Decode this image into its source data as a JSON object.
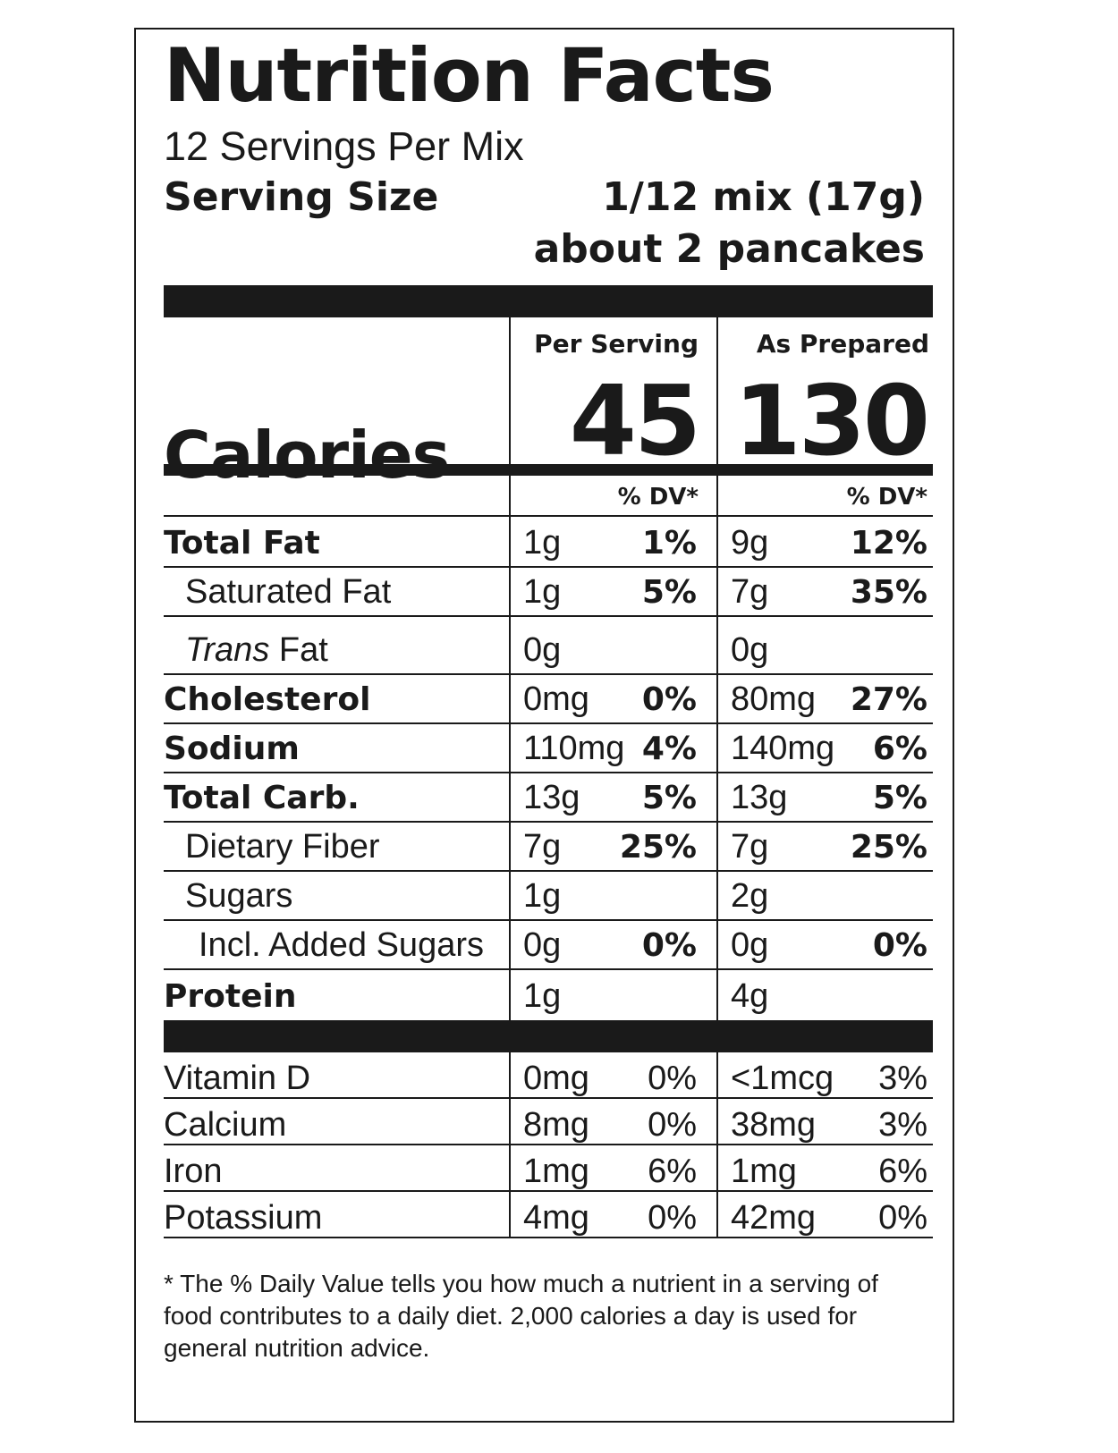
{
  "title": "Nutrition Facts",
  "servings_per_container": "12 Servings Per Mix",
  "serving_size": {
    "label": "Serving Size",
    "value_line1": "1/12 mix (17g)",
    "value_line2": "about 2 pancakes"
  },
  "columns": {
    "per_serving": "Per Serving",
    "as_prepared": "As Prepared",
    "dv_header": "% DV*"
  },
  "calories": {
    "label": "Calories",
    "per_serving": "45",
    "as_prepared": "130"
  },
  "nutrients": [
    {
      "name": "Total Fat",
      "style": "bold",
      "ps_amt": "1g",
      "ps_dv": "1%",
      "ap_amt": "9g",
      "ap_dv": "12%"
    },
    {
      "name": "Saturated Fat",
      "style": "sub",
      "ps_amt": "1g",
      "ps_dv": "5%",
      "ap_amt": "7g",
      "ap_dv": "35%"
    },
    {
      "name_italic": "Trans",
      "name_rest": " Fat",
      "style": "sub",
      "ps_amt": "0g",
      "ps_dv": "",
      "ap_amt": "0g",
      "ap_dv": ""
    },
    {
      "name": "Cholesterol",
      "style": "bold",
      "ps_amt": "0mg",
      "ps_dv": "0%",
      "ap_amt": "80mg",
      "ap_dv": "27%"
    },
    {
      "name": "Sodium",
      "style": "bold",
      "ps_amt": "110mg",
      "ps_dv": "4%",
      "ap_amt": "140mg",
      "ap_dv": "6%"
    },
    {
      "name": "Total Carb.",
      "style": "bold",
      "ps_amt": "13g",
      "ps_dv": "5%",
      "ap_amt": "13g",
      "ap_dv": "5%"
    },
    {
      "name": "Dietary Fiber",
      "style": "sub",
      "ps_amt": "7g",
      "ps_dv": "25%",
      "ap_amt": "7g",
      "ap_dv": "25%"
    },
    {
      "name": "Sugars",
      "style": "sub",
      "ps_amt": "1g",
      "ps_dv": "",
      "ap_amt": "2g",
      "ap_dv": ""
    },
    {
      "name": "Incl. Added Sugars",
      "style": "subsub",
      "ps_amt": "0g",
      "ps_dv": "0%",
      "ap_amt": "0g",
      "ap_dv": "0%"
    },
    {
      "name": "Protein",
      "style": "bold",
      "ps_amt": "1g",
      "ps_dv": "",
      "ap_amt": "4g",
      "ap_dv": ""
    }
  ],
  "vitamins": [
    {
      "name": "Vitamin D",
      "ps_amt": "0mg",
      "ps_dv": "0%",
      "ap_amt": "<1mcg",
      "ap_dv": "3%"
    },
    {
      "name": "Calcium",
      "ps_amt": "8mg",
      "ps_dv": "0%",
      "ap_amt": "38mg",
      "ap_dv": "3%"
    },
    {
      "name": "Iron",
      "ps_amt": "1mg",
      "ps_dv": "6%",
      "ap_amt": "1mg",
      "ap_dv": "6%"
    },
    {
      "name": "Potassium",
      "ps_amt": "4mg",
      "ps_dv": "0%",
      "ap_amt": "42mg",
      "ap_dv": "0%"
    }
  ],
  "footnote": "* The % Daily Value tells you how much a nutrient in a serving of food contributes to a daily diet. 2,000 calories a day is used for general nutrition advice."
}
